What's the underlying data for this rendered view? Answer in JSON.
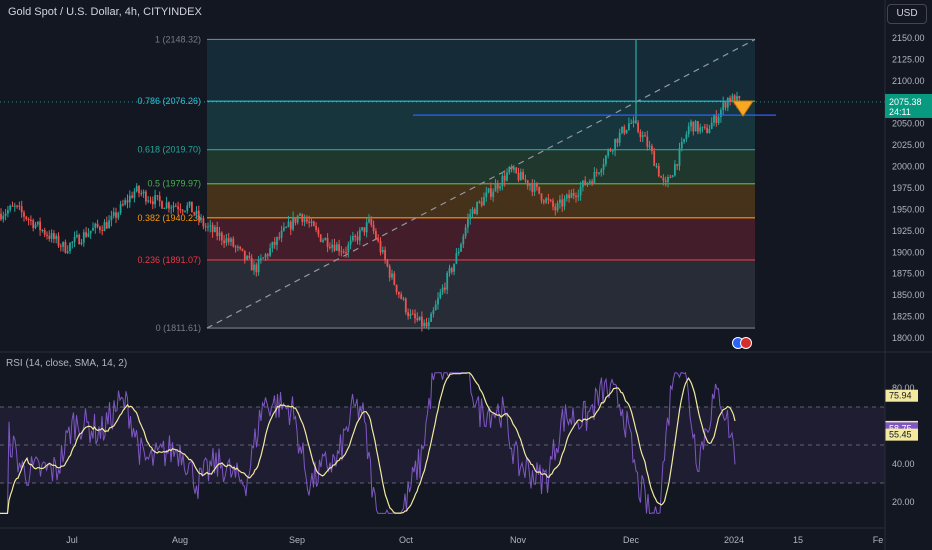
{
  "header": {
    "symbol_title": "Gold Spot / U.S. Dollar, 4h, CITYINDEX",
    "currency_button": "USD"
  },
  "colors": {
    "background": "#131722",
    "up": "#26a69a",
    "down": "#ef5350",
    "rsi_line": "#7e57c2",
    "rsi_ma": "#f3e99f",
    "price_badge": "#089981"
  },
  "price_axis": {
    "ticks": [
      "2150.00",
      "2125.00",
      "2100.00",
      "2075.00",
      "2050.00",
      "2025.00",
      "2000.00",
      "1975.00",
      "1950.00",
      "1925.00",
      "1900.00",
      "1875.00",
      "1850.00",
      "1825.00",
      "1800.00"
    ],
    "last_price": "2075.38",
    "countdown": "24:11"
  },
  "time_axis": {
    "labels": [
      "Jul",
      "Aug",
      "Sep",
      "Oct",
      "Nov",
      "Dec",
      "2024",
      "15",
      "Fe"
    ]
  },
  "fib": {
    "levels": [
      {
        "label": "1 (2148.32)",
        "price": 2148.32,
        "color": "#787b86"
      },
      {
        "label": "0.786 (2076.26)",
        "price": 2076.26,
        "color": "#26c6da"
      },
      {
        "label": "0.618 (2019.70)",
        "price": 2019.7,
        "color": "#26a69a"
      },
      {
        "label": "0.5 (1979.97)",
        "price": 1979.97,
        "color": "#4caf50"
      },
      {
        "label": "0.382 (1940.23)",
        "price": 1940.23,
        "color": "#ff9800"
      },
      {
        "label": "0.236 (1891.07)",
        "price": 1891.07,
        "color": "#f23645"
      },
      {
        "label": "0 (1811.61)",
        "price": 1811.61,
        "color": "#787b86"
      }
    ]
  },
  "rsi": {
    "title": "RSI (14, close, SMA, 14, 2)",
    "axis_ticks": [
      "80.00",
      "60.00",
      "40.00",
      "20.00"
    ],
    "badges": [
      {
        "value": "75.94",
        "color": "#f3e99f",
        "text_color": "#131722"
      },
      {
        "value": "59.52",
        "color": "#f3e99f",
        "text_color": "#131722"
      },
      {
        "value": "58.75",
        "color": "#7e57c2",
        "text_color": "#ffffff"
      },
      {
        "value": "55.45",
        "color": "#f3e99f",
        "text_color": "#131722"
      }
    ]
  }
}
